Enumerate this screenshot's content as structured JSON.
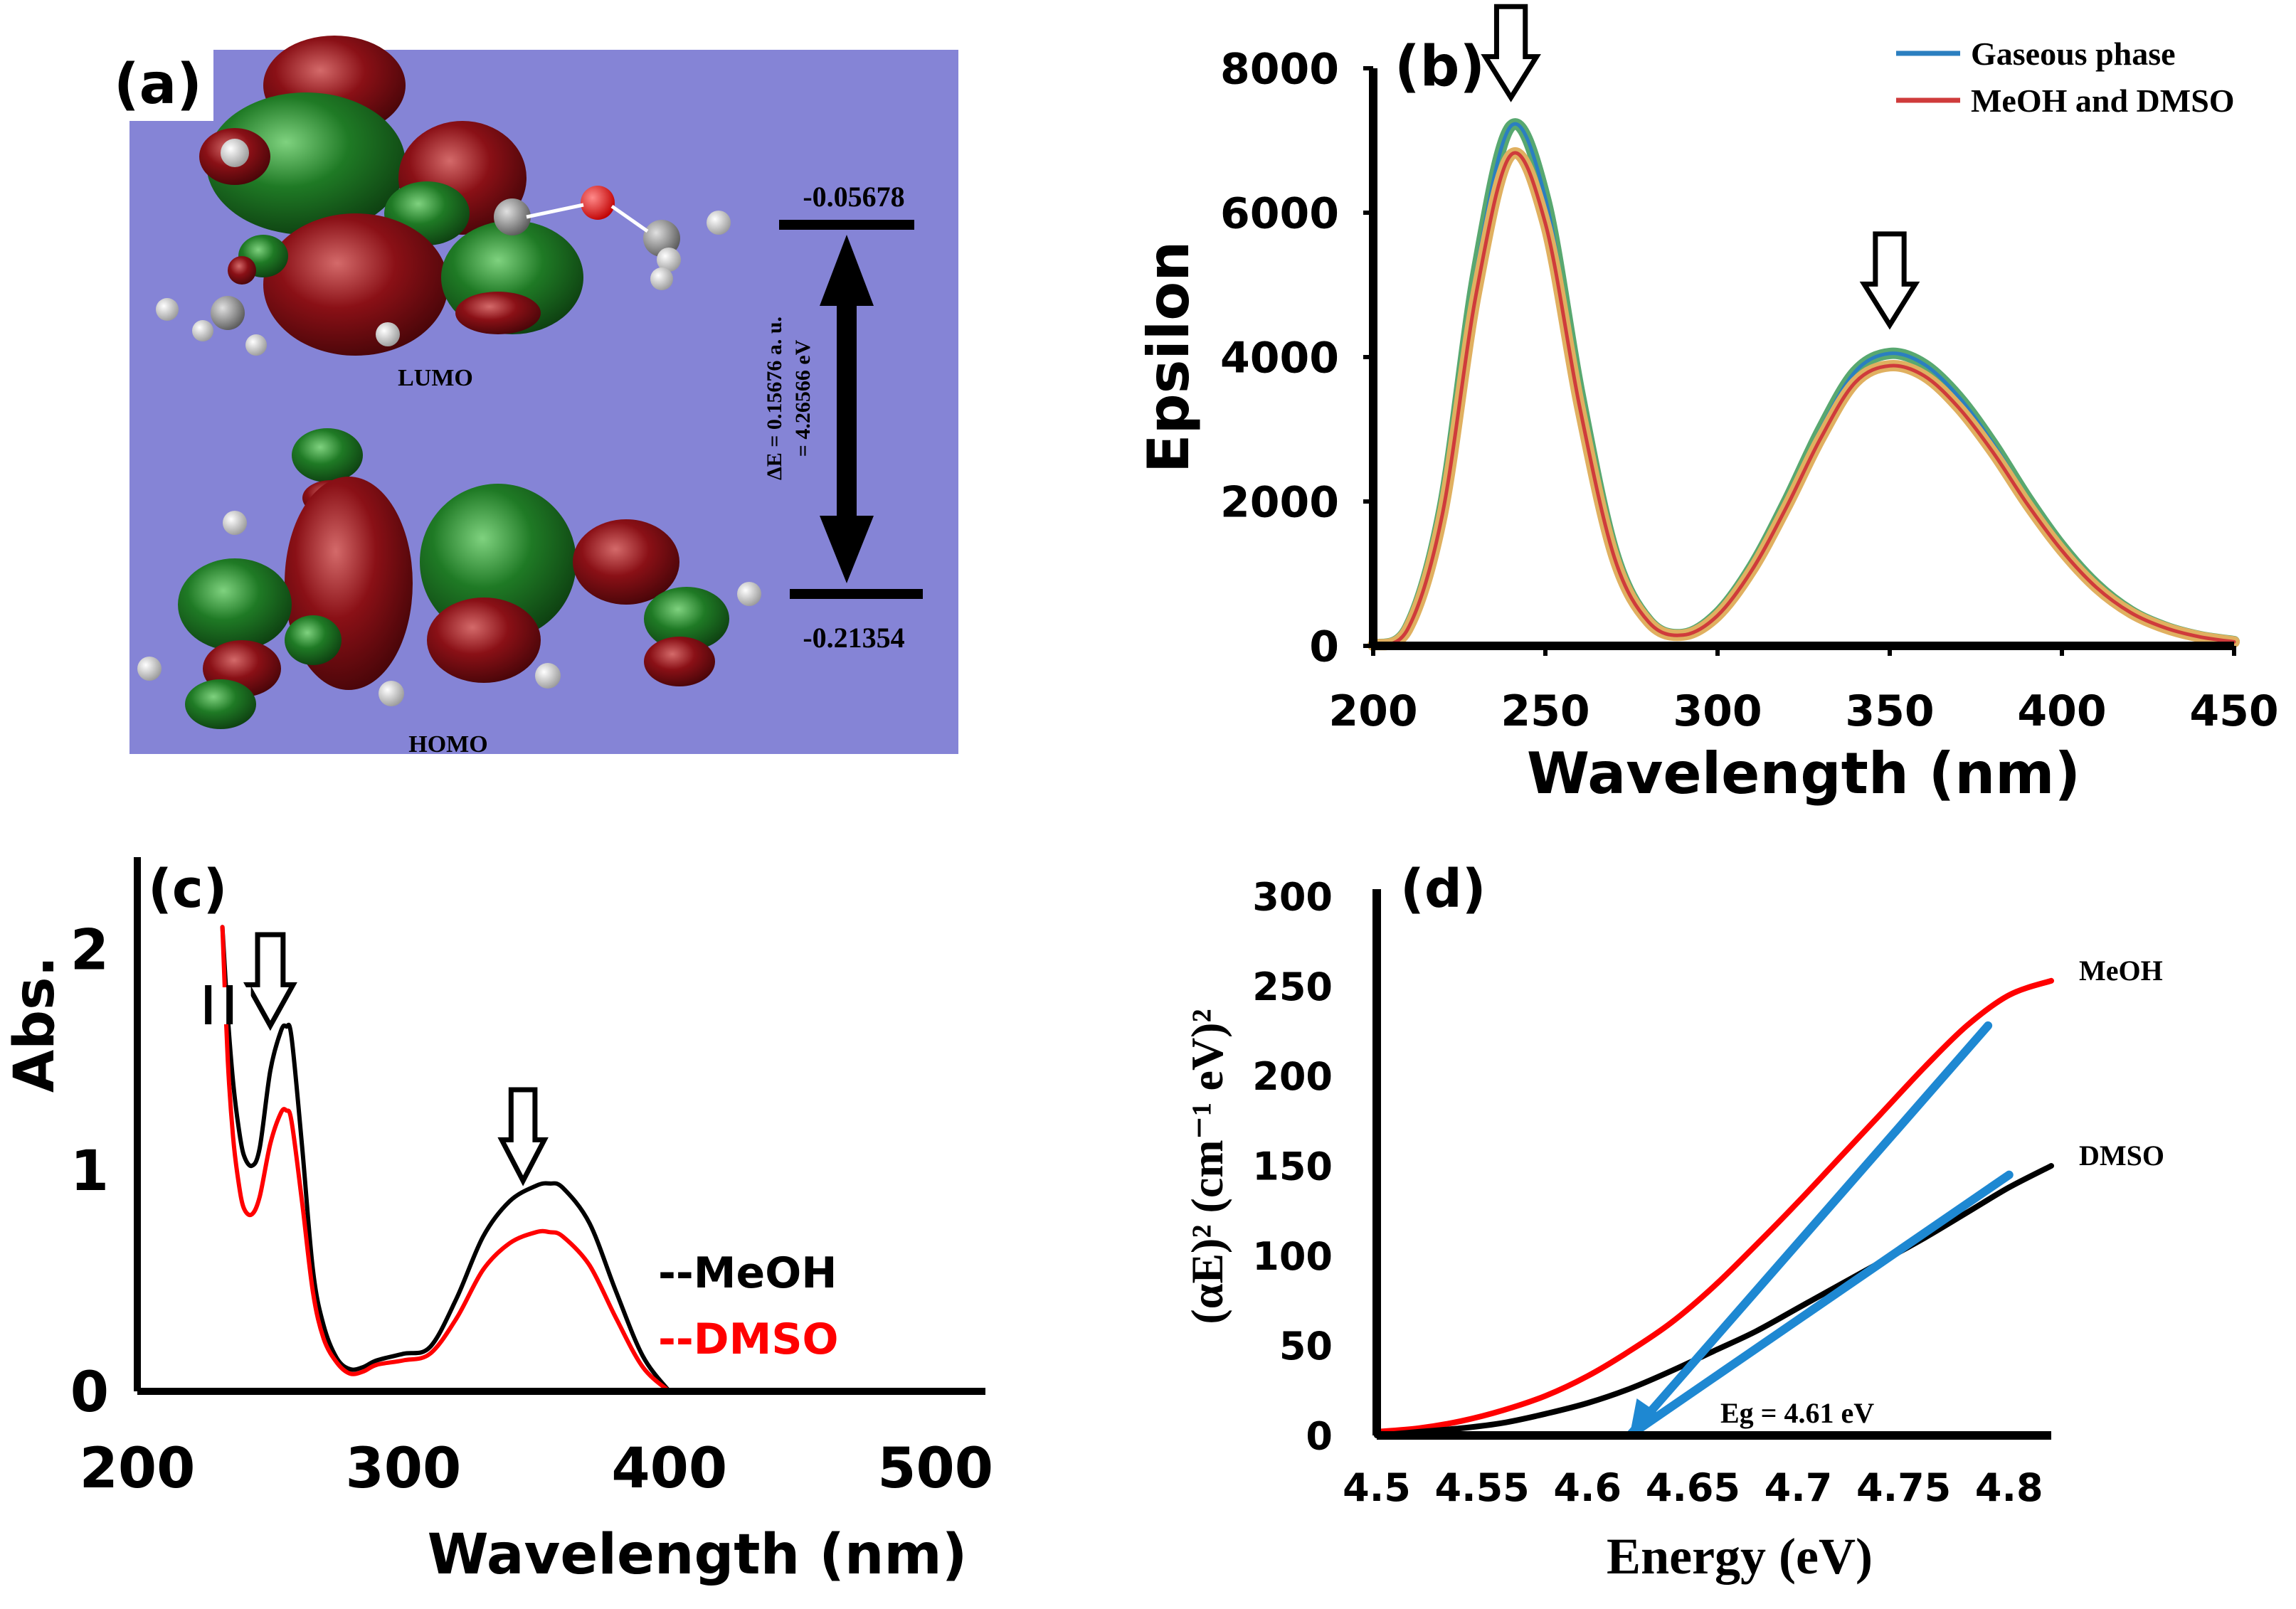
{
  "panels": {
    "a": {
      "label": "(a)",
      "lumo_label": "LUMO",
      "homo_label": "HOMO",
      "lumo_energy": "-0.05678",
      "homo_energy": "-0.21354",
      "gap_line1": "ΔE = 0.15676  a. u.",
      "gap_line2": "= 4.26566  eV",
      "background_color": "#8584d6",
      "lobe_colors": {
        "positive": "#1f7a25",
        "negative": "#8a1016"
      }
    },
    "b": {
      "label": "(b)"
    },
    "c": {
      "label": "(c)"
    },
    "d": {
      "label": "(d)"
    }
  },
  "chart_data": [
    {
      "panel": "b",
      "type": "line",
      "title": "",
      "xlabel": "Wavelength (nm)",
      "ylabel": "Epsilon",
      "xlim": [
        200,
        450
      ],
      "ylim": [
        0,
        8000
      ],
      "xticks": [
        200,
        250,
        300,
        350,
        400,
        450
      ],
      "yticks": [
        0,
        2000,
        4000,
        6000,
        8000
      ],
      "legend": {
        "placement": "top-right",
        "entries": [
          "Gaseous phase",
          "MeOH and DMSO"
        ]
      },
      "series": [
        {
          "name": "Gaseous phase",
          "color": "#2b7fc0",
          "x": [
            200,
            210,
            220,
            230,
            240,
            250,
            260,
            270,
            280,
            290,
            300,
            310,
            320,
            330,
            340,
            350,
            360,
            370,
            380,
            390,
            400,
            410,
            420,
            430,
            440,
            450
          ],
          "values": [
            10,
            250,
            1900,
            5200,
            7200,
            6200,
            3500,
            1300,
            350,
            160,
            450,
            1100,
            2000,
            3000,
            3800,
            4050,
            3900,
            3450,
            2800,
            2050,
            1380,
            850,
            480,
            260,
            130,
            60
          ]
        },
        {
          "name": "MeOH and DMSO",
          "color": "#cf3b3b",
          "x": [
            200,
            210,
            220,
            230,
            240,
            250,
            260,
            270,
            280,
            290,
            300,
            310,
            320,
            330,
            340,
            350,
            360,
            370,
            380,
            390,
            400,
            410,
            420,
            430,
            440,
            450
          ],
          "values": [
            10,
            230,
            1800,
            4900,
            6800,
            5850,
            3300,
            1230,
            330,
            150,
            420,
            1050,
            1920,
            2880,
            3650,
            3880,
            3740,
            3300,
            2680,
            1960,
            1320,
            810,
            460,
            250,
            125,
            55
          ]
        }
      ],
      "annotations": [
        {
          "type": "arrow-down",
          "x": 240
        },
        {
          "type": "arrow-down",
          "x": 350
        }
      ]
    },
    {
      "panel": "c",
      "type": "line",
      "title": "",
      "xlabel": "Wavelength (nm)",
      "ylabel": "Abs.",
      "xlim": [
        200,
        510
      ],
      "ylim": [
        0,
        2.4
      ],
      "xticks": [
        200,
        300,
        400,
        500
      ],
      "yticks": [
        0,
        1,
        2
      ],
      "legend": {
        "placement": "right",
        "entries": [
          "--MeOH",
          "--DMSO"
        ]
      },
      "series": [
        {
          "name": "--MeOH",
          "color": "#000000",
          "x": [
            232,
            234,
            236,
            238,
            240,
            243,
            246,
            250,
            254,
            256,
            258,
            262,
            266,
            270,
            275,
            280,
            285,
            290,
            300,
            310,
            320,
            330,
            340,
            350,
            355,
            360,
            370,
            380,
            390,
            400
          ],
          "values": [
            2.1,
            1.7,
            1.4,
            1.2,
            1.07,
            1.02,
            1.1,
            1.45,
            1.63,
            1.65,
            1.6,
            1.1,
            0.55,
            0.3,
            0.15,
            0.1,
            0.11,
            0.14,
            0.17,
            0.2,
            0.42,
            0.7,
            0.86,
            0.93,
            0.94,
            0.92,
            0.76,
            0.45,
            0.16,
            0.0
          ]
        },
        {
          "name": "--DMSO",
          "color": "#ff0000",
          "x": [
            232,
            234,
            236,
            238,
            240,
            243,
            246,
            250,
            254,
            256,
            258,
            262,
            266,
            270,
            275,
            280,
            285,
            290,
            300,
            310,
            320,
            330,
            340,
            350,
            355,
            360,
            370,
            380,
            390,
            400
          ],
          "values": [
            2.1,
            1.5,
            1.15,
            0.95,
            0.83,
            0.8,
            0.88,
            1.12,
            1.26,
            1.27,
            1.22,
            0.85,
            0.45,
            0.24,
            0.13,
            0.08,
            0.09,
            0.12,
            0.14,
            0.17,
            0.33,
            0.55,
            0.67,
            0.72,
            0.72,
            0.7,
            0.57,
            0.33,
            0.11,
            0.0
          ]
        }
      ],
      "annotations": [
        {
          "type": "arrow-down",
          "x": 250
        },
        {
          "type": "arrow-down",
          "x": 345
        },
        {
          "type": "axis-break",
          "x": 232
        }
      ]
    },
    {
      "panel": "d",
      "type": "line",
      "title": "",
      "xlabel": "Energy (eV)",
      "ylabel": "(αE)² (cm⁻¹ eV)²",
      "xlim": [
        4.5,
        4.82
      ],
      "ylim": [
        0,
        300
      ],
      "xticks": [
        4.5,
        4.55,
        4.6,
        4.65,
        4.7,
        4.75,
        4.8
      ],
      "yticks": [
        0,
        50,
        100,
        150,
        200,
        250,
        300
      ],
      "legend": {
        "placement": "right",
        "entries": [
          "MeOH",
          "DMSO"
        ]
      },
      "series": [
        {
          "name": "MeOH",
          "color": "#ff0000",
          "x": [
            4.5,
            4.52,
            4.54,
            4.56,
            4.58,
            4.6,
            4.62,
            4.64,
            4.66,
            4.68,
            4.7,
            4.72,
            4.74,
            4.76,
            4.78,
            4.8,
            4.82
          ],
          "values": [
            2,
            4,
            8,
            14,
            22,
            33,
            47,
            63,
            83,
            106,
            130,
            155,
            180,
            205,
            228,
            245,
            253
          ]
        },
        {
          "name": "DMSO",
          "color": "#000000",
          "x": [
            4.5,
            4.52,
            4.54,
            4.56,
            4.58,
            4.6,
            4.62,
            4.64,
            4.66,
            4.68,
            4.7,
            4.72,
            4.74,
            4.76,
            4.78,
            4.8,
            4.82
          ],
          "values": [
            0,
            2,
            4,
            7,
            12,
            18,
            26,
            36,
            47,
            58,
            71,
            84,
            97,
            110,
            124,
            138,
            150
          ]
        }
      ],
      "fit_lines": [
        {
          "name": "MeOH linear fit",
          "color": "#1e88d2",
          "x": [
            4.62,
            4.79
          ],
          "values": [
            0,
            228
          ]
        },
        {
          "name": "DMSO linear fit",
          "color": "#1e88d2",
          "x": [
            4.62,
            4.8
          ],
          "values": [
            0,
            145
          ]
        }
      ],
      "annotations": [
        {
          "type": "text",
          "text": "Eg = 4.61 eV"
        }
      ]
    }
  ]
}
